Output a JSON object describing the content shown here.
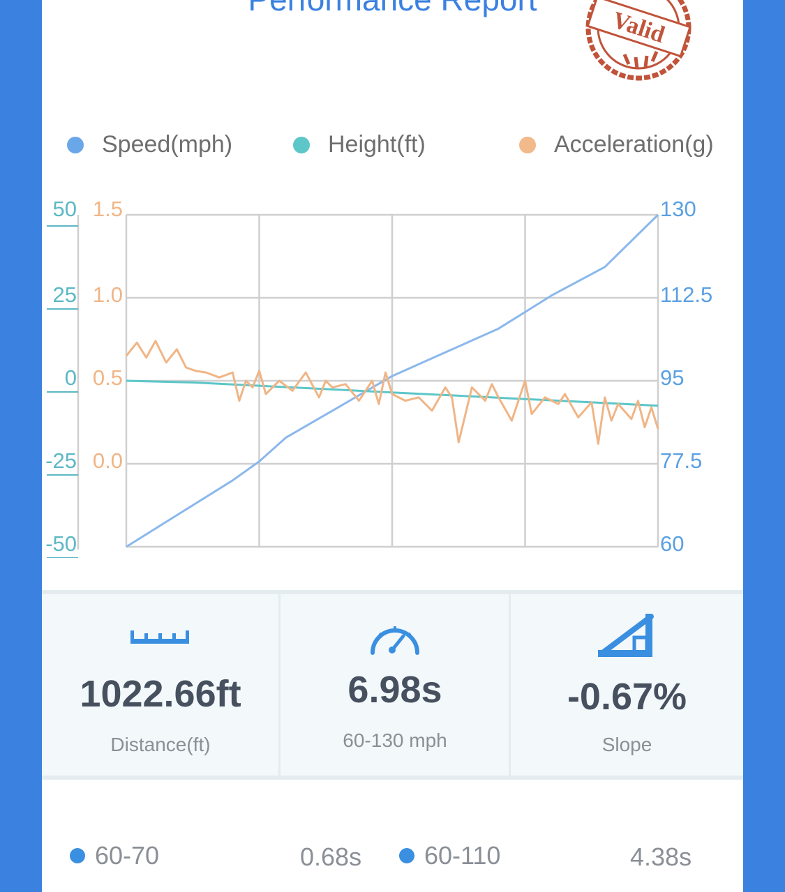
{
  "header": {
    "title": "Performance Report",
    "stamp_text": "Valid"
  },
  "legend": [
    {
      "label": "Speed(mph)",
      "color": "#6aa7e8"
    },
    {
      "label": "Height(ft)",
      "color": "#5cc6c8"
    },
    {
      "label": "Acceleration(g)",
      "color": "#f2b98a"
    }
  ],
  "chart_data": {
    "type": "line",
    "axes": {
      "height_left": {
        "ticks": [
          "50",
          "25",
          "0",
          "-25",
          "-50"
        ],
        "range": [
          -50,
          50
        ],
        "color": "#5cb8c4"
      },
      "acceleration_left": {
        "ticks": [
          "1.5",
          "1.0",
          "0.5",
          "0.0"
        ],
        "range": [
          -0.5,
          1.5
        ],
        "color": "#f0b586"
      },
      "speed_right": {
        "ticks": [
          "130",
          "112.5",
          "95",
          "77.5",
          "60"
        ],
        "range": [
          60,
          130
        ],
        "color": "#5aa0e2"
      }
    },
    "grid": true,
    "x_range": [
      0,
      4
    ],
    "series": [
      {
        "name": "Speed(mph)",
        "axis": "speed_right",
        "color": "#8bb8ec",
        "x": [
          0,
          0.4,
          0.8,
          1.0,
          1.2,
          1.6,
          2.0,
          2.4,
          2.8,
          3.2,
          3.6,
          4.0
        ],
        "values": [
          60,
          67,
          74,
          78,
          83,
          89.5,
          96,
          101,
          106,
          113,
          119,
          130
        ]
      },
      {
        "name": "Height(ft)",
        "axis": "height_left",
        "color": "#5cc6c8",
        "x": [
          0,
          0.5,
          1.0,
          1.5,
          2.0,
          2.5,
          3.0,
          3.5,
          4.0
        ],
        "values": [
          0,
          -0.5,
          -1.5,
          -2.5,
          -3.5,
          -4.5,
          -5.5,
          -6.5,
          -7.5
        ]
      },
      {
        "name": "Acceleration(g)",
        "axis": "acceleration_left",
        "color": "#f0b586",
        "x": [
          0,
          0.08,
          0.15,
          0.22,
          0.3,
          0.38,
          0.45,
          0.52,
          0.6,
          0.7,
          0.8,
          0.85,
          0.9,
          0.95,
          1.0,
          1.05,
          1.15,
          1.25,
          1.35,
          1.45,
          1.5,
          1.55,
          1.65,
          1.75,
          1.85,
          1.9,
          1.95,
          2.0,
          2.1,
          2.2,
          2.3,
          2.4,
          2.45,
          2.5,
          2.6,
          2.7,
          2.75,
          2.8,
          2.9,
          3.0,
          3.05,
          3.15,
          3.25,
          3.3,
          3.4,
          3.5,
          3.55,
          3.6,
          3.65,
          3.7,
          3.8,
          3.85,
          3.9,
          3.95,
          4.0
        ],
        "values": [
          0.65,
          0.73,
          0.64,
          0.74,
          0.61,
          0.69,
          0.58,
          0.56,
          0.55,
          0.52,
          0.55,
          0.38,
          0.5,
          0.46,
          0.56,
          0.42,
          0.5,
          0.44,
          0.55,
          0.4,
          0.5,
          0.46,
          0.48,
          0.38,
          0.5,
          0.36,
          0.55,
          0.42,
          0.38,
          0.4,
          0.32,
          0.46,
          0.4,
          0.13,
          0.46,
          0.38,
          0.48,
          0.4,
          0.26,
          0.5,
          0.3,
          0.4,
          0.36,
          0.42,
          0.28,
          0.37,
          0.12,
          0.4,
          0.26,
          0.36,
          0.27,
          0.38,
          0.22,
          0.34,
          0.21
        ]
      }
    ]
  },
  "stats": [
    {
      "icon": "ruler-icon",
      "value": "1022.66ft",
      "label": "Distance(ft)"
    },
    {
      "icon": "speedometer-icon",
      "value": "6.98s",
      "label": "60-130 mph"
    },
    {
      "icon": "slope-icon",
      "value": "-0.67%",
      "label": "Slope"
    }
  ],
  "splits": [
    {
      "label": "60-70",
      "time": "0.68s"
    },
    {
      "label": "60-110",
      "time": "4.38s"
    }
  ]
}
